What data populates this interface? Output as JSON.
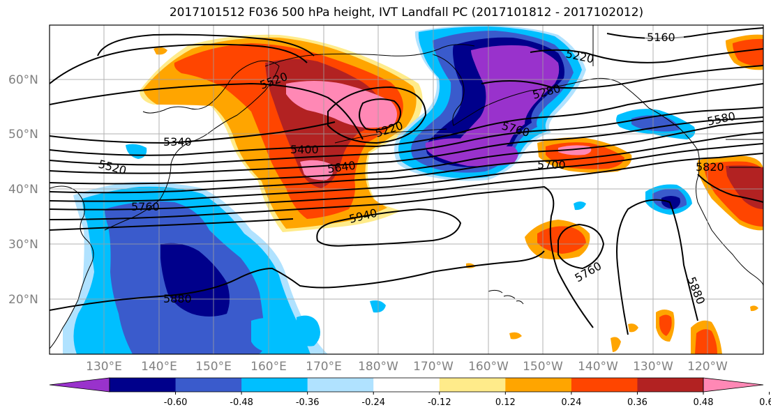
{
  "title": "2017101512 F036 500 hPa height, IVT Landfall PC (2017101812 - 2017102012)",
  "latitude_labels": [
    "60°N",
    "50°N",
    "40°N",
    "30°N",
    "20°N"
  ],
  "longitude_labels": [
    "130°E",
    "140°E",
    "150°E",
    "160°E",
    "170°E",
    "180°W",
    "170°W",
    "160°W",
    "150°W",
    "140°W",
    "130°W",
    "120°W"
  ],
  "contour_labels": [
    "5160",
    "5220",
    "5520",
    "5280",
    "5580",
    "5220",
    "5760",
    "5340",
    "5400",
    "5640",
    "5700",
    "5820",
    "5520",
    "5760",
    "5940",
    "5760",
    "5880",
    "5880"
  ],
  "colorbar": {
    "tick_labels": [
      "-0.60",
      "-0.48",
      "-0.36",
      "-0.24",
      "-0.12",
      "0.12",
      "0.24",
      "0.36",
      "0.48",
      "0.60"
    ],
    "colors": [
      "#9932CC",
      "#00008B",
      "#3A5BCC",
      "#00BFFF",
      "#B0E2FF",
      "#FFFFFF",
      "#FFEB8A",
      "#FFA500",
      "#FF4500",
      "#B22222",
      "#FF88B5"
    ]
  }
}
